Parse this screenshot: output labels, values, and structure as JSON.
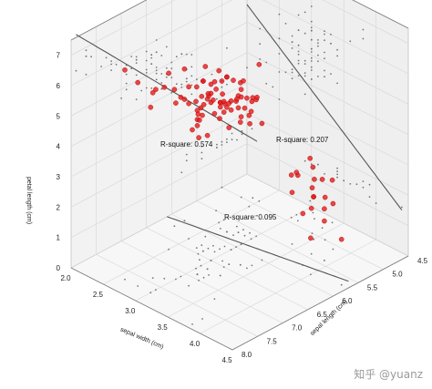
{
  "chart_data": {
    "type": "scatter",
    "axes": {
      "x": {
        "label": "sepal width (cm)",
        "range": [
          2.0,
          4.5
        ],
        "ticks": [
          "2.0",
          "2.5",
          "3.0",
          "3.5",
          "4.0",
          "4.5"
        ]
      },
      "y": {
        "label": "sepal length (cm)",
        "range": [
          4.5,
          8.0
        ],
        "ticks": [
          "4.5",
          "5.0",
          "5.5",
          "6.0",
          "6.5",
          "7.0",
          "7.5",
          "8.0"
        ]
      },
      "z": {
        "label": "petal length (cm)",
        "range": [
          0,
          7
        ],
        "ticks": [
          "0",
          "1",
          "2",
          "3",
          "4",
          "5",
          "6",
          "7"
        ]
      }
    },
    "grid": true,
    "annotations": [
      {
        "text": "R-square: 0.574",
        "color": "#111111"
      },
      {
        "text": "R-square: 0.207",
        "color": "#111111"
      },
      {
        "text": "R-square: 0.095",
        "color": "#111111"
      }
    ],
    "series": [
      {
        "color": "#e31a1c",
        "points": [
          [
            3.5,
            5.1,
            1.4
          ],
          [
            3.0,
            4.9,
            1.4
          ],
          [
            3.2,
            4.7,
            1.3
          ],
          [
            3.1,
            4.6,
            1.5
          ],
          [
            3.6,
            5.0,
            1.4
          ],
          [
            3.9,
            5.4,
            1.7
          ],
          [
            3.4,
            4.6,
            1.4
          ],
          [
            3.4,
            5.0,
            1.5
          ],
          [
            2.9,
            4.4,
            1.4
          ],
          [
            3.1,
            4.9,
            1.5
          ],
          [
            3.7,
            5.4,
            1.5
          ],
          [
            3.4,
            4.8,
            1.6
          ],
          [
            3.0,
            4.8,
            1.4
          ],
          [
            4.0,
            5.8,
            1.2
          ],
          [
            4.4,
            5.7,
            1.5
          ],
          [
            3.9,
            5.4,
            1.3
          ],
          [
            3.5,
            5.1,
            1.4
          ],
          [
            3.8,
            5.7,
            1.7
          ],
          [
            3.8,
            5.1,
            1.5
          ],
          [
            3.4,
            5.4,
            1.7
          ],
          [
            3.2,
            7.0,
            4.7
          ],
          [
            3.2,
            6.4,
            4.5
          ],
          [
            3.1,
            6.9,
            4.9
          ],
          [
            2.3,
            5.5,
            4.0
          ],
          [
            2.8,
            6.5,
            4.6
          ],
          [
            2.8,
            5.7,
            4.5
          ],
          [
            3.3,
            6.3,
            4.7
          ],
          [
            2.4,
            4.9,
            3.3
          ],
          [
            2.9,
            6.6,
            4.6
          ],
          [
            2.7,
            5.2,
            3.9
          ],
          [
            2.0,
            5.0,
            3.5
          ],
          [
            3.0,
            5.9,
            4.2
          ],
          [
            2.2,
            6.0,
            4.0
          ],
          [
            2.9,
            6.1,
            4.7
          ],
          [
            2.9,
            5.6,
            3.6
          ],
          [
            3.1,
            6.7,
            4.4
          ],
          [
            3.0,
            5.6,
            4.5
          ],
          [
            2.7,
            5.8,
            4.1
          ],
          [
            2.2,
            6.2,
            4.5
          ],
          [
            2.5,
            5.6,
            3.9
          ],
          [
            3.3,
            6.3,
            6.0
          ],
          [
            2.7,
            5.8,
            5.1
          ],
          [
            3.0,
            7.1,
            5.9
          ],
          [
            2.9,
            6.3,
            5.6
          ],
          [
            3.0,
            6.5,
            5.8
          ],
          [
            3.0,
            7.6,
            6.6
          ],
          [
            2.5,
            4.9,
            4.5
          ],
          [
            2.9,
            7.3,
            6.3
          ],
          [
            2.5,
            6.7,
            5.8
          ],
          [
            3.6,
            7.2,
            6.1
          ],
          [
            3.2,
            6.5,
            5.1
          ],
          [
            2.7,
            6.4,
            5.3
          ],
          [
            3.0,
            6.8,
            5.5
          ],
          [
            2.5,
            5.7,
            5.0
          ],
          [
            2.8,
            5.8,
            5.1
          ],
          [
            3.2,
            6.4,
            5.3
          ],
          [
            3.0,
            6.5,
            5.5
          ],
          [
            3.8,
            7.7,
            6.7
          ],
          [
            2.6,
            7.7,
            6.9
          ],
          [
            2.2,
            6.0,
            5.0
          ],
          [
            3.2,
            6.9,
            5.7
          ],
          [
            2.8,
            5.6,
            4.9
          ],
          [
            2.8,
            7.7,
            6.7
          ],
          [
            2.7,
            6.3,
            4.9
          ],
          [
            3.3,
            6.7,
            5.7
          ],
          [
            3.2,
            7.2,
            6.0
          ],
          [
            2.8,
            6.2,
            4.8
          ],
          [
            3.0,
            6.1,
            4.9
          ],
          [
            2.8,
            6.4,
            5.6
          ],
          [
            3.0,
            7.2,
            5.8
          ],
          [
            2.8,
            7.4,
            6.1
          ],
          [
            3.8,
            7.9,
            6.4
          ],
          [
            2.8,
            6.4,
            5.6
          ],
          [
            2.8,
            6.3,
            5.1
          ],
          [
            2.6,
            6.1,
            5.6
          ],
          [
            3.0,
            7.7,
            6.1
          ],
          [
            3.4,
            6.3,
            5.6
          ],
          [
            3.1,
            6.4,
            5.5
          ],
          [
            3.0,
            6.0,
            4.8
          ],
          [
            3.1,
            6.9,
            5.4
          ],
          [
            3.1,
            6.7,
            5.6
          ],
          [
            3.1,
            6.9,
            5.1
          ],
          [
            2.7,
            5.8,
            5.1
          ],
          [
            3.2,
            6.8,
            5.9
          ],
          [
            3.3,
            6.7,
            5.7
          ],
          [
            3.0,
            6.7,
            5.2
          ],
          [
            2.5,
            6.3,
            5.0
          ],
          [
            3.0,
            6.5,
            5.2
          ],
          [
            3.4,
            6.2,
            5.4
          ],
          [
            3.0,
            5.9,
            5.1
          ],
          [
            3.0,
            6.1,
            4.6
          ],
          [
            2.6,
            5.8,
            4.0
          ],
          [
            2.3,
            5.0,
            3.3
          ],
          [
            2.7,
            5.6,
            4.2
          ],
          [
            3.0,
            5.7,
            4.2
          ],
          [
            2.9,
            5.7,
            4.2
          ],
          [
            2.9,
            6.2,
            4.3
          ],
          [
            2.5,
            5.1,
            3.0
          ],
          [
            2.8,
            5.7,
            4.1
          ],
          [
            3.4,
            6.0,
            4.5
          ]
        ]
      }
    ],
    "fits": [
      {
        "plane": "z_vs_y",
        "xy_fixed": 4.5,
        "coef": [
          -7.1,
          1.86,
          0
        ],
        "range": [
          4.3,
          7.9
        ],
        "annotation": "R-square: 0.574"
      },
      {
        "plane": "z_vs_x",
        "yy_fixed": 8.0,
        "coef": [
          9.06,
          -1.74,
          0
        ],
        "range": [
          2.0,
          4.4
        ],
        "annotation": "R-square: 0.207"
      },
      {
        "plane": "y_vs_x",
        "zz_fixed": 0,
        "coef": [
          6.53,
          -0.22,
          0
        ],
        "range": [
          2.0,
          4.4
        ],
        "annotation": "R-square: 0.095"
      }
    ]
  },
  "watermark": "知乎 @yuanz"
}
